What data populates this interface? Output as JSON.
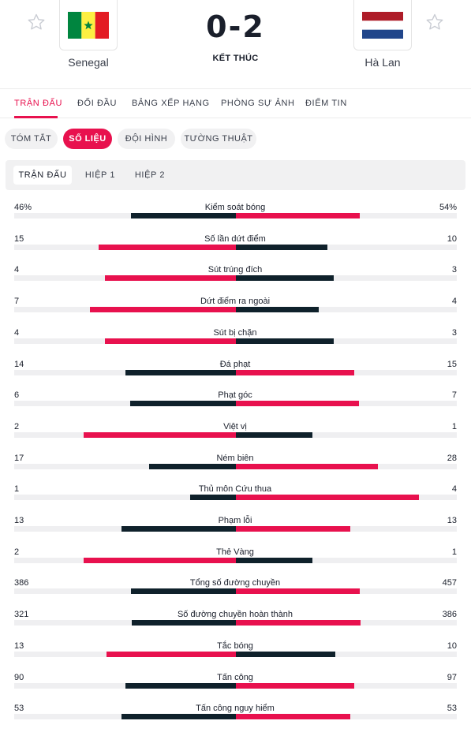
{
  "match": {
    "home_team": "Senegal",
    "away_team": "Hà Lan",
    "score": "0-2",
    "status": "KẾT THÚC",
    "home_flag_icon": "senegal-flag-icon",
    "away_flag_icon": "netherlands-flag-icon"
  },
  "nav": {
    "items": [
      "TRẬN ĐẤU",
      "ĐỐI ĐẦU",
      "BẢNG XẾP HẠNG",
      "PHÒNG SỰ ẢNH",
      "ĐIỂM TIN"
    ],
    "active": "TRẬN ĐẤU"
  },
  "subtabs": {
    "items": [
      "TÓM TẮT",
      "SỐ LIỆU",
      "ĐỘI HÌNH",
      "TƯỜNG THUẬT"
    ],
    "active": "SỐ LIỆU"
  },
  "periods": {
    "items": [
      "TRẬN ĐẤU",
      "HIỆP 1",
      "HIỆP 2"
    ],
    "active": "TRẬN ĐẤU"
  },
  "colors": {
    "accent": "#e8114e",
    "dark": "#0f212b",
    "track": "#efeff1"
  },
  "stats": [
    {
      "label": "Kiểm soát bóng",
      "home": "46%",
      "away": "54%",
      "home_value": 46,
      "away_value": 54
    },
    {
      "label": "Số lần dứt điểm",
      "home": "15",
      "away": "10",
      "home_value": 15,
      "away_value": 10
    },
    {
      "label": "Sút trúng đích",
      "home": "4",
      "away": "3",
      "home_value": 4,
      "away_value": 3
    },
    {
      "label": "Dứt điểm ra ngoài",
      "home": "7",
      "away": "4",
      "home_value": 7,
      "away_value": 4
    },
    {
      "label": "Sút bị chặn",
      "home": "4",
      "away": "3",
      "home_value": 4,
      "away_value": 3
    },
    {
      "label": "Đá phạt",
      "home": "14",
      "away": "15",
      "home_value": 14,
      "away_value": 15
    },
    {
      "label": "Phạt góc",
      "home": "6",
      "away": "7",
      "home_value": 6,
      "away_value": 7
    },
    {
      "label": "Việt vị",
      "home": "2",
      "away": "1",
      "home_value": 2,
      "away_value": 1
    },
    {
      "label": "Ném biên",
      "home": "17",
      "away": "28",
      "home_value": 17,
      "away_value": 28
    },
    {
      "label": "Thủ môn Cứu thua",
      "home": "1",
      "away": "4",
      "home_value": 1,
      "away_value": 4
    },
    {
      "label": "Phạm lỗi",
      "home": "13",
      "away": "13",
      "home_value": 13,
      "away_value": 13
    },
    {
      "label": "Thẻ Vàng",
      "home": "2",
      "away": "1",
      "home_value": 2,
      "away_value": 1
    },
    {
      "label": "Tổng số đường chuyền",
      "home": "386",
      "away": "457",
      "home_value": 386,
      "away_value": 457
    },
    {
      "label": "Số đường chuyền hoàn thành",
      "home": "321",
      "away": "386",
      "home_value": 321,
      "away_value": 386
    },
    {
      "label": "Tắc bóng",
      "home": "13",
      "away": "10",
      "home_value": 13,
      "away_value": 10
    },
    {
      "label": "Tấn công",
      "home": "90",
      "away": "97",
      "home_value": 90,
      "away_value": 97
    },
    {
      "label": "Tấn công nguy hiểm",
      "home": "53",
      "away": "53",
      "home_value": 53,
      "away_value": 53
    }
  ]
}
